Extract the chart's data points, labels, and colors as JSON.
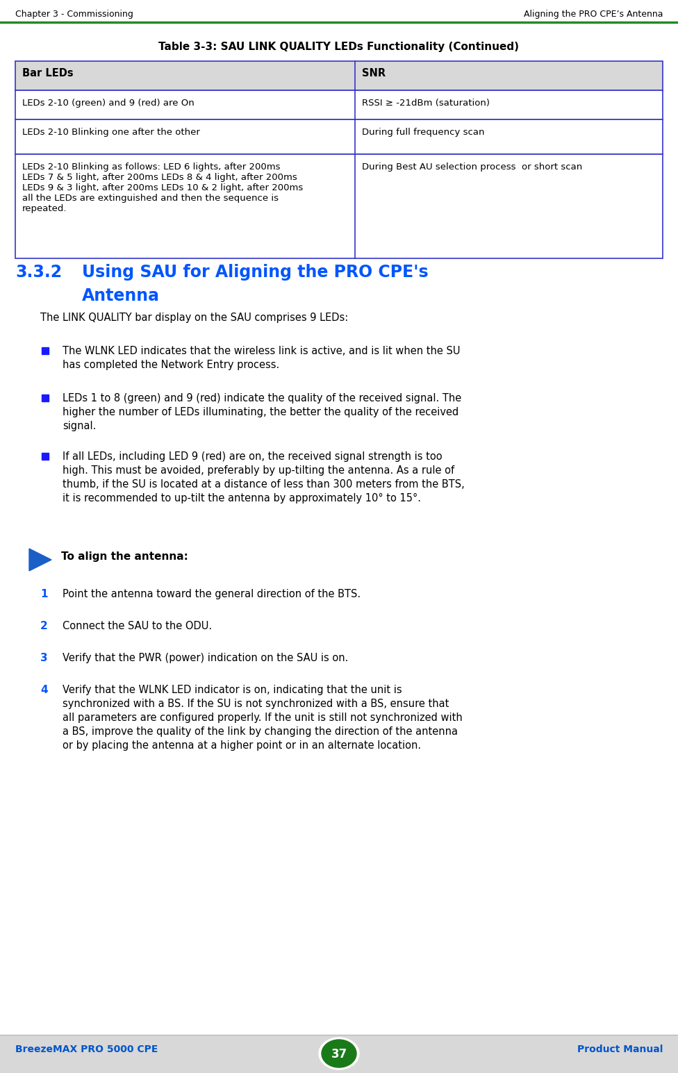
{
  "page_bg": "#ffffff",
  "footer_bg": "#d8d8d8",
  "header_line_color": "#228B22",
  "table_border_color": "#3333cc",
  "table_header_bg": "#d8d8d8",
  "header_left": "Chapter 3 - Commissioning",
  "header_right": "Aligning the PRO CPE’s Antenna",
  "footer_left": "BreezeMAX PRO 5000 CPE",
  "footer_center": "37",
  "footer_right": "Product Manual",
  "table_title": "Table 3-3: SAU LINK QUALITY LEDs Functionality (Continued)",
  "table_col1_header": "Bar LEDs",
  "table_col2_header": "SNR",
  "table_row1_col1": "LEDs 2-10 (green) and 9 (red) are On",
  "table_row1_col2": "RSSI ≥ -21dBm (saturation)",
  "table_row2_col1": "LEDs 2-10 Blinking one after the other",
  "table_row2_col2": "During full frequency scan",
  "table_row3_col1": "LEDs 2-10 Blinking as follows: LED 6 lights, after 200ms\nLEDs 7 & 5 light, after 200ms LEDs 8 & 4 light, after 200ms\nLEDs 9 & 3 light, after 200ms LEDs 10 & 2 light, after 200ms\nall the LEDs are extinguished and then the sequence is\nrepeated.",
  "table_row3_col2": "During Best AU selection process  or short scan",
  "section_number": "3.3.2",
  "section_title_line1": "Using SAU for Aligning the PRO CPE's",
  "section_title_line2": "Antenna",
  "section_color": "#0055ff",
  "body_text_color": "#000000",
  "bullet_color": "#1a1aff",
  "arrow_color": "#1a5fc8",
  "para1": "The LINK QUALITY bar display on the SAU comprises 9 LEDs:",
  "bullet1_line1": "The WLNK LED indicates that the wireless link is active, and is lit when the SU",
  "bullet1_line2": "has completed the Network Entry process.",
  "bullet2_line1": "LEDs 1 to 8 (green) and 9 (red) indicate the quality of the received signal. The",
  "bullet2_line2": "higher the number of LEDs illuminating, the better the quality of the received",
  "bullet2_line3": "signal.",
  "bullet3_line1": "If all LEDs, including LED 9 (red) are on, the received signal strength is too",
  "bullet3_line2": "high. This must be avoided, preferably by up-tilting the antenna. As a rule of",
  "bullet3_line3": "thumb, if the SU is located at a distance of less than 300 meters from the BTS,",
  "bullet3_line4": "it is recommended to up-tilt the antenna by approximately 10° to 15°.",
  "to_align_label": "To align the antenna:",
  "step1_num": "1",
  "step1_text": "Point the antenna toward the general direction of the BTS.",
  "step2_num": "2",
  "step2_text": "Connect the SAU to the ODU.",
  "step3_num": "3",
  "step3_text": "Verify that the PWR (power) indication on the SAU is on.",
  "step4_num": "4",
  "step4_line1": "Verify that the WLNK LED indicator is on, indicating that the unit is",
  "step4_line2": "synchronized with a BS. If the SU is not synchronized with a BS, ensure that",
  "step4_line3": "all parameters are configured properly. If the unit is still not synchronized with",
  "step4_line4": "a BS, improve the quality of the link by changing the direction of the antenna",
  "step4_line5": "or by placing the antenna at a higher point or in an alternate location."
}
